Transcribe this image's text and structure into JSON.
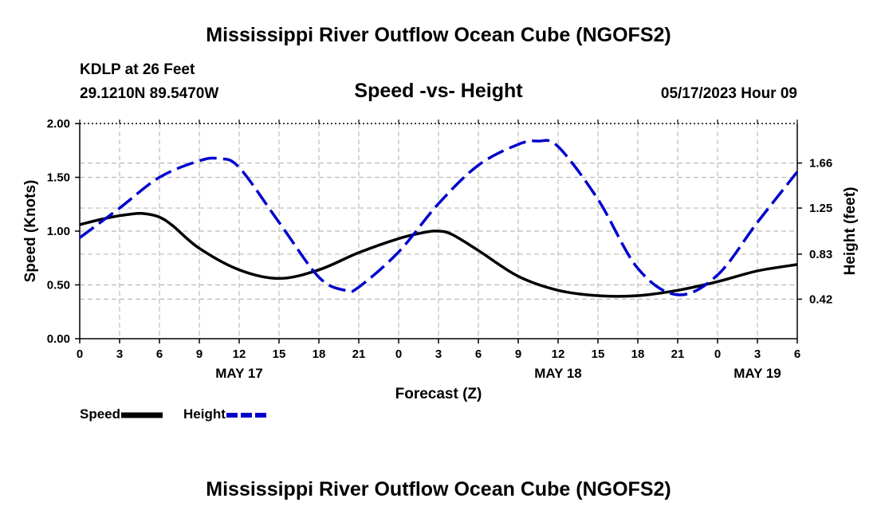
{
  "page": {
    "title_top": "Mississippi River Outflow Ocean Cube (NGOFS2)",
    "title_bottom": "Mississippi River Outflow Ocean Cube (NGOFS2)",
    "station_label": "KDLP at 26 Feet",
    "coordinates": "29.1210N  89.5470W",
    "subtitle": "Speed -vs- Height",
    "timestamp": "05/17/2023 Hour 09"
  },
  "legend": {
    "speed_label": "Speed",
    "height_label": "Height"
  },
  "colors": {
    "speed": "#000000",
    "height": "#0000cc",
    "grid": "#bbbbbb"
  },
  "chart_data": {
    "type": "line",
    "title": "Speed -vs- Height",
    "xlabel": "Forecast (Z)",
    "ylabel_left": "Speed (Knots)",
    "ylabel_right": "Height (feet)",
    "xlim": [
      0,
      54
    ],
    "ylim_left": [
      0,
      2.0
    ],
    "ylim_right": [
      0.06,
      2.02
    ],
    "x_ticks": [
      0,
      3,
      6,
      9,
      12,
      15,
      18,
      21,
      24,
      27,
      30,
      33,
      36,
      39,
      42,
      45,
      48,
      51,
      54
    ],
    "x_tick_labels": [
      "0",
      "3",
      "6",
      "9",
      "12",
      "15",
      "18",
      "21",
      "0",
      "3",
      "6",
      "9",
      "12",
      "15",
      "18",
      "21",
      "0",
      "3",
      "6"
    ],
    "date_labels": [
      {
        "x": 12,
        "label": "MAY 17"
      },
      {
        "x": 36,
        "label": "MAY 18"
      },
      {
        "x": 51,
        "label": "MAY 19"
      }
    ],
    "y_left_ticks": [
      0.0,
      0.5,
      1.0,
      1.5,
      2.0
    ],
    "y_left_tick_labels": [
      "0.00",
      "0.50",
      "1.00",
      "1.50",
      "2.00"
    ],
    "y_right_ticks": [
      0.42,
      0.83,
      1.25,
      1.66
    ],
    "y_right_tick_labels": [
      "0.42",
      "0.83",
      "1.25",
      "1.66"
    ],
    "series": [
      {
        "name": "Speed",
        "axis": "left",
        "x": [
          0,
          2,
          4,
          5,
          6,
          7,
          9,
          12,
          15,
          18,
          21,
          24,
          26,
          27,
          28,
          30,
          33,
          36,
          39,
          42,
          45,
          48,
          51,
          54
        ],
        "values": [
          1.06,
          1.12,
          1.16,
          1.16,
          1.13,
          1.05,
          0.84,
          0.64,
          0.56,
          0.64,
          0.8,
          0.93,
          0.99,
          1.0,
          0.97,
          0.82,
          0.58,
          0.45,
          0.4,
          0.4,
          0.45,
          0.53,
          0.63,
          0.69
        ]
      },
      {
        "name": "Height",
        "axis": "right",
        "x": [
          0,
          3,
          6,
          9,
          10.5,
          12,
          15,
          18,
          20,
          21,
          24,
          27,
          30,
          33,
          34.5,
          36,
          39,
          42,
          45,
          48,
          51,
          54
        ],
        "values": [
          0.98,
          1.25,
          1.53,
          1.68,
          1.7,
          1.62,
          1.12,
          0.62,
          0.5,
          0.53,
          0.85,
          1.29,
          1.64,
          1.83,
          1.86,
          1.81,
          1.33,
          0.7,
          0.46,
          0.64,
          1.12,
          1.58
        ]
      }
    ]
  }
}
